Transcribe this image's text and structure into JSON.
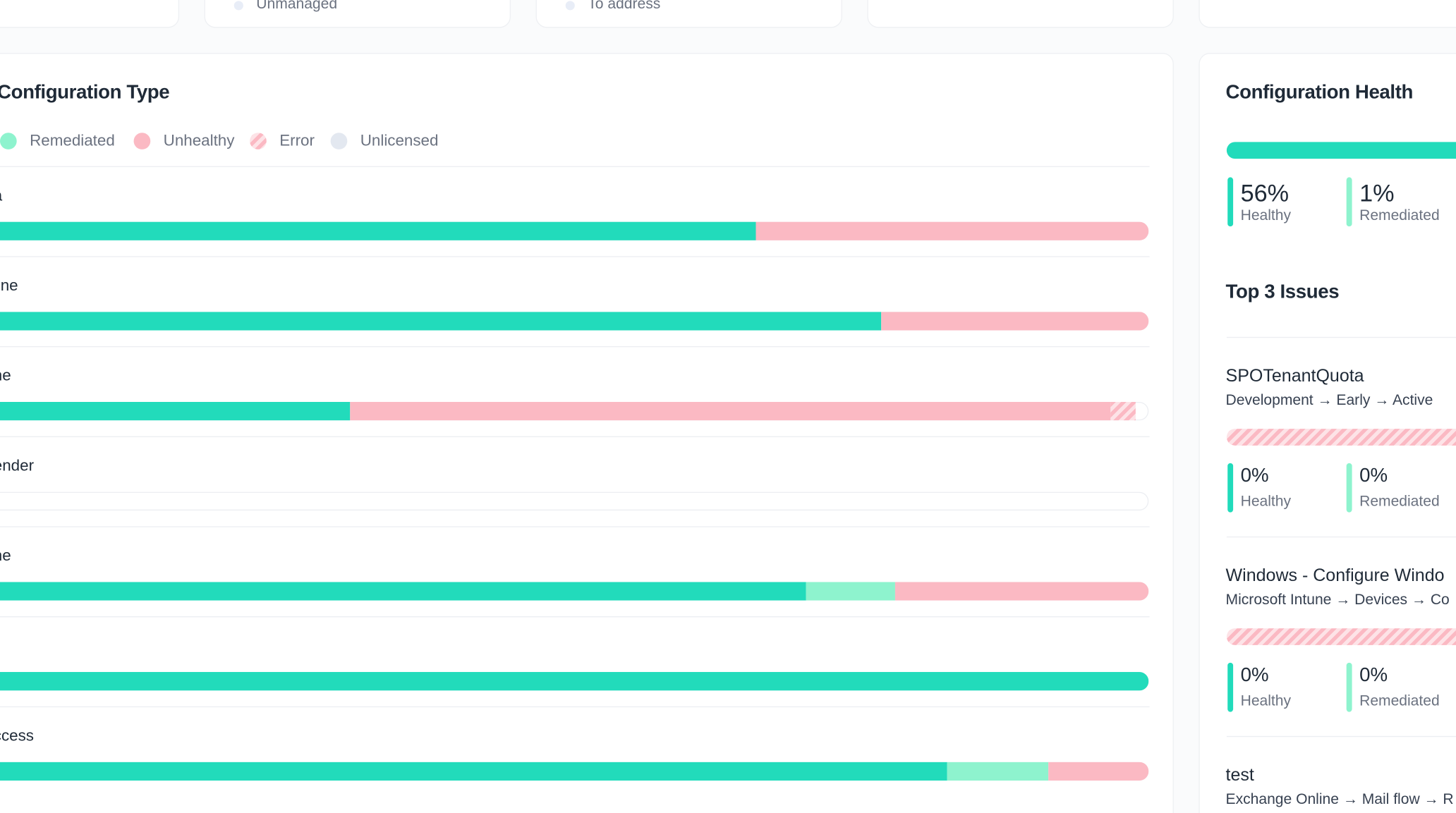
{
  "top_cards": [
    {
      "label": "Unmanaged"
    },
    {
      "label": "To address"
    }
  ],
  "config_type": {
    "title": "Configuration Type",
    "legend": [
      {
        "name": "Remediated",
        "style": "dot"
      },
      {
        "name": "Unhealthy",
        "style": "dot"
      },
      {
        "name": "Error",
        "style": "hatch"
      },
      {
        "name": "Unlicensed",
        "style": "dot"
      }
    ],
    "segment_colors": [
      "#22dbbb",
      "#8ef3ce",
      "#fbb9c3",
      "hatch",
      "#e3e8f0"
    ],
    "rows": [
      {
        "label": "a",
        "values": [
          66.3,
          0,
          33.7,
          0,
          0
        ]
      },
      {
        "label": "line",
        "values": [
          77.1,
          0,
          22.9,
          0,
          0
        ]
      },
      {
        "label": "ne",
        "values": [
          31.5,
          0,
          65.2,
          2.2,
          0
        ]
      },
      {
        "label": "ender",
        "values": [
          0,
          0,
          0,
          0,
          0
        ]
      },
      {
        "label": "ne",
        "values": [
          70.6,
          7.7,
          21.7,
          0,
          0
        ]
      },
      {
        "label": null,
        "values": [
          100,
          0,
          0,
          0,
          0
        ]
      },
      {
        "label": "ccess",
        "values": [
          82.7,
          8.7,
          8.6,
          0,
          0
        ]
      }
    ]
  },
  "config_health": {
    "title": "Configuration Health",
    "stats": [
      {
        "value": "56%",
        "label": "Healthy"
      },
      {
        "value": "1%",
        "label": "Remediated"
      }
    ]
  },
  "top_issues": {
    "title": "Top 3 Issues",
    "items": [
      {
        "name": "SPOTenantQuota",
        "path": "Development → Early → Active",
        "stats": [
          {
            "value": "0%",
            "label": "Healthy"
          },
          {
            "value": "0%",
            "label": "Remediated"
          }
        ]
      },
      {
        "name": "Windows - Configure Windo",
        "path": "Microsoft Intune → Devices → Co",
        "stats": [
          {
            "value": "0%",
            "label": "Healthy"
          },
          {
            "value": "0%",
            "label": "Remediated"
          }
        ]
      },
      {
        "name": "test",
        "path": "Exchange Online → Mail flow → R"
      }
    ]
  }
}
